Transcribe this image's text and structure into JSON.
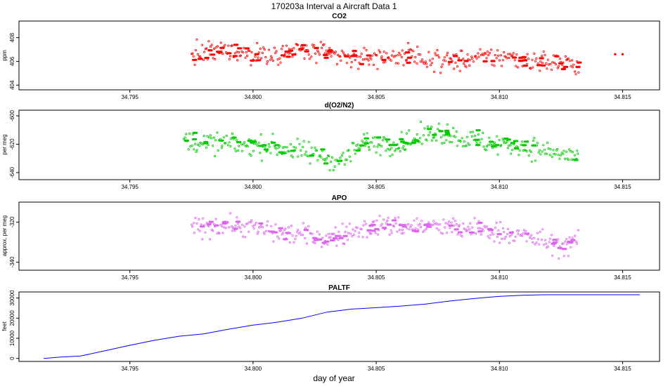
{
  "figure": {
    "title": "170203a   Interval a Aircraft Data 1",
    "xlabel": "day of year"
  },
  "chart_data": [
    {
      "type": "scatter",
      "title": "CO2",
      "ylabel": "ppm",
      "color": "#ff0000",
      "xlim": [
        34.7905,
        34.8165
      ],
      "ylim": [
        403.6,
        409.4
      ],
      "xticks": [
        "34.795",
        "34.800",
        "34.805",
        "34.810",
        "34.815"
      ],
      "yticks": [
        "404",
        "406",
        "408"
      ],
      "x_range": [
        34.7975,
        34.8132
      ],
      "trend": [
        [
          34.7975,
          406.6
        ],
        [
          34.799,
          406.9
        ],
        [
          34.8,
          406.5
        ],
        [
          34.802,
          406.9
        ],
        [
          34.804,
          406.2
        ],
        [
          34.806,
          406.5
        ],
        [
          34.808,
          406.0
        ],
        [
          34.81,
          406.4
        ],
        [
          34.8132,
          405.7
        ]
      ],
      "extra_points": [
        [
          34.8147,
          406.6
        ],
        [
          34.815,
          406.6
        ]
      ]
    },
    {
      "type": "scatter",
      "title": "d(O2/N2)",
      "ylabel": "per meg",
      "color": "#00cc00",
      "xlim": [
        34.7905,
        34.8165
      ],
      "ylim": [
        -645,
        -596
      ],
      "xticks": [
        "34.795",
        "34.800",
        "34.805",
        "34.810",
        "34.815"
      ],
      "yticks": [
        "-640",
        "-620",
        "-600"
      ],
      "x_range": [
        34.7972,
        34.8132
      ],
      "trend": [
        [
          34.7972,
          -618
        ],
        [
          34.799,
          -620
        ],
        [
          34.801,
          -622
        ],
        [
          34.8025,
          -627
        ],
        [
          34.8035,
          -632
        ],
        [
          34.8045,
          -619
        ],
        [
          34.806,
          -620
        ],
        [
          34.8075,
          -611
        ],
        [
          34.809,
          -618
        ],
        [
          34.811,
          -622
        ],
        [
          34.8132,
          -629
        ]
      ],
      "extra_points": []
    },
    {
      "type": "scatter",
      "title": "APO",
      "ylabel": "approx. per meg",
      "color": "#dd66ee",
      "xlim": [
        34.7905,
        34.8165
      ],
      "ylim": [
        -344,
        -310
      ],
      "xticks": [
        "34.795",
        "34.800",
        "34.805",
        "34.810",
        "34.815"
      ],
      "yticks": [
        "-340",
        "-320"
      ],
      "x_range": [
        34.7975,
        34.8132
      ],
      "trend": [
        [
          34.7975,
          -323
        ],
        [
          34.799,
          -321
        ],
        [
          34.801,
          -325
        ],
        [
          34.803,
          -328
        ],
        [
          34.805,
          -322
        ],
        [
          34.807,
          -322
        ],
        [
          34.8095,
          -324
        ],
        [
          34.811,
          -327
        ],
        [
          34.8125,
          -332
        ],
        [
          34.8132,
          -330
        ]
      ],
      "extra_points": []
    },
    {
      "type": "line",
      "title": "PALTF",
      "ylabel": "feet",
      "color": "#0000ff",
      "xlim": [
        34.7905,
        34.8165
      ],
      "ylim": [
        -1500,
        33000
      ],
      "xticks": [
        "34.795",
        "34.800",
        "34.805",
        "34.810",
        "34.815"
      ],
      "yticks": [
        "0",
        "10000",
        "20000",
        "30000"
      ],
      "x": [
        34.7915,
        34.7922,
        34.793,
        34.794,
        34.795,
        34.796,
        34.797,
        34.798,
        34.799,
        34.8,
        34.801,
        34.802,
        34.803,
        34.804,
        34.805,
        34.806,
        34.807,
        34.808,
        34.809,
        34.81,
        34.811,
        34.8118,
        34.813,
        34.814,
        34.815,
        34.8157
      ],
      "y": [
        0,
        700,
        1200,
        3800,
        6500,
        9000,
        11000,
        12200,
        14500,
        16500,
        18000,
        20000,
        23000,
        24500,
        25200,
        26000,
        27000,
        28500,
        29800,
        30800,
        31400,
        31600,
        31600,
        31600,
        31600,
        31600
      ]
    }
  ]
}
